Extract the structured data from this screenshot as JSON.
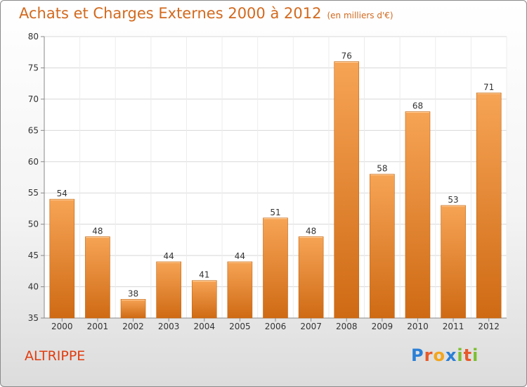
{
  "title": "Achats et Charges Externes 2000 à 2012",
  "unit": "(en milliers d'€)",
  "commune": "ALTRIPPE",
  "logo": {
    "text": "Proxiti",
    "letters": [
      "P",
      "r",
      "o",
      "x",
      "i",
      "t",
      "i"
    ],
    "colors": [
      "#2b7fd6",
      "#e8592a",
      "#f3a51d",
      "#2b7fd6",
      "#7bbf2e",
      "#e8592a",
      "#7bbf2e"
    ]
  },
  "colors": {
    "bar_top": "#f6a455",
    "bar_bottom": "#cf6a14",
    "title": "#d2691e",
    "commune": "#e03c10"
  },
  "chart_data": {
    "type": "bar",
    "categories": [
      "2000",
      "2001",
      "2002",
      "2003",
      "2004",
      "2005",
      "2006",
      "2007",
      "2008",
      "2009",
      "2010",
      "2011",
      "2012"
    ],
    "values": [
      54,
      48,
      38,
      44,
      41,
      44,
      51,
      48,
      76,
      58,
      68,
      53,
      71
    ],
    "ylim": [
      35,
      80
    ],
    "yticks": [
      35,
      40,
      45,
      50,
      55,
      60,
      65,
      70,
      75,
      80
    ],
    "grid": true
  }
}
